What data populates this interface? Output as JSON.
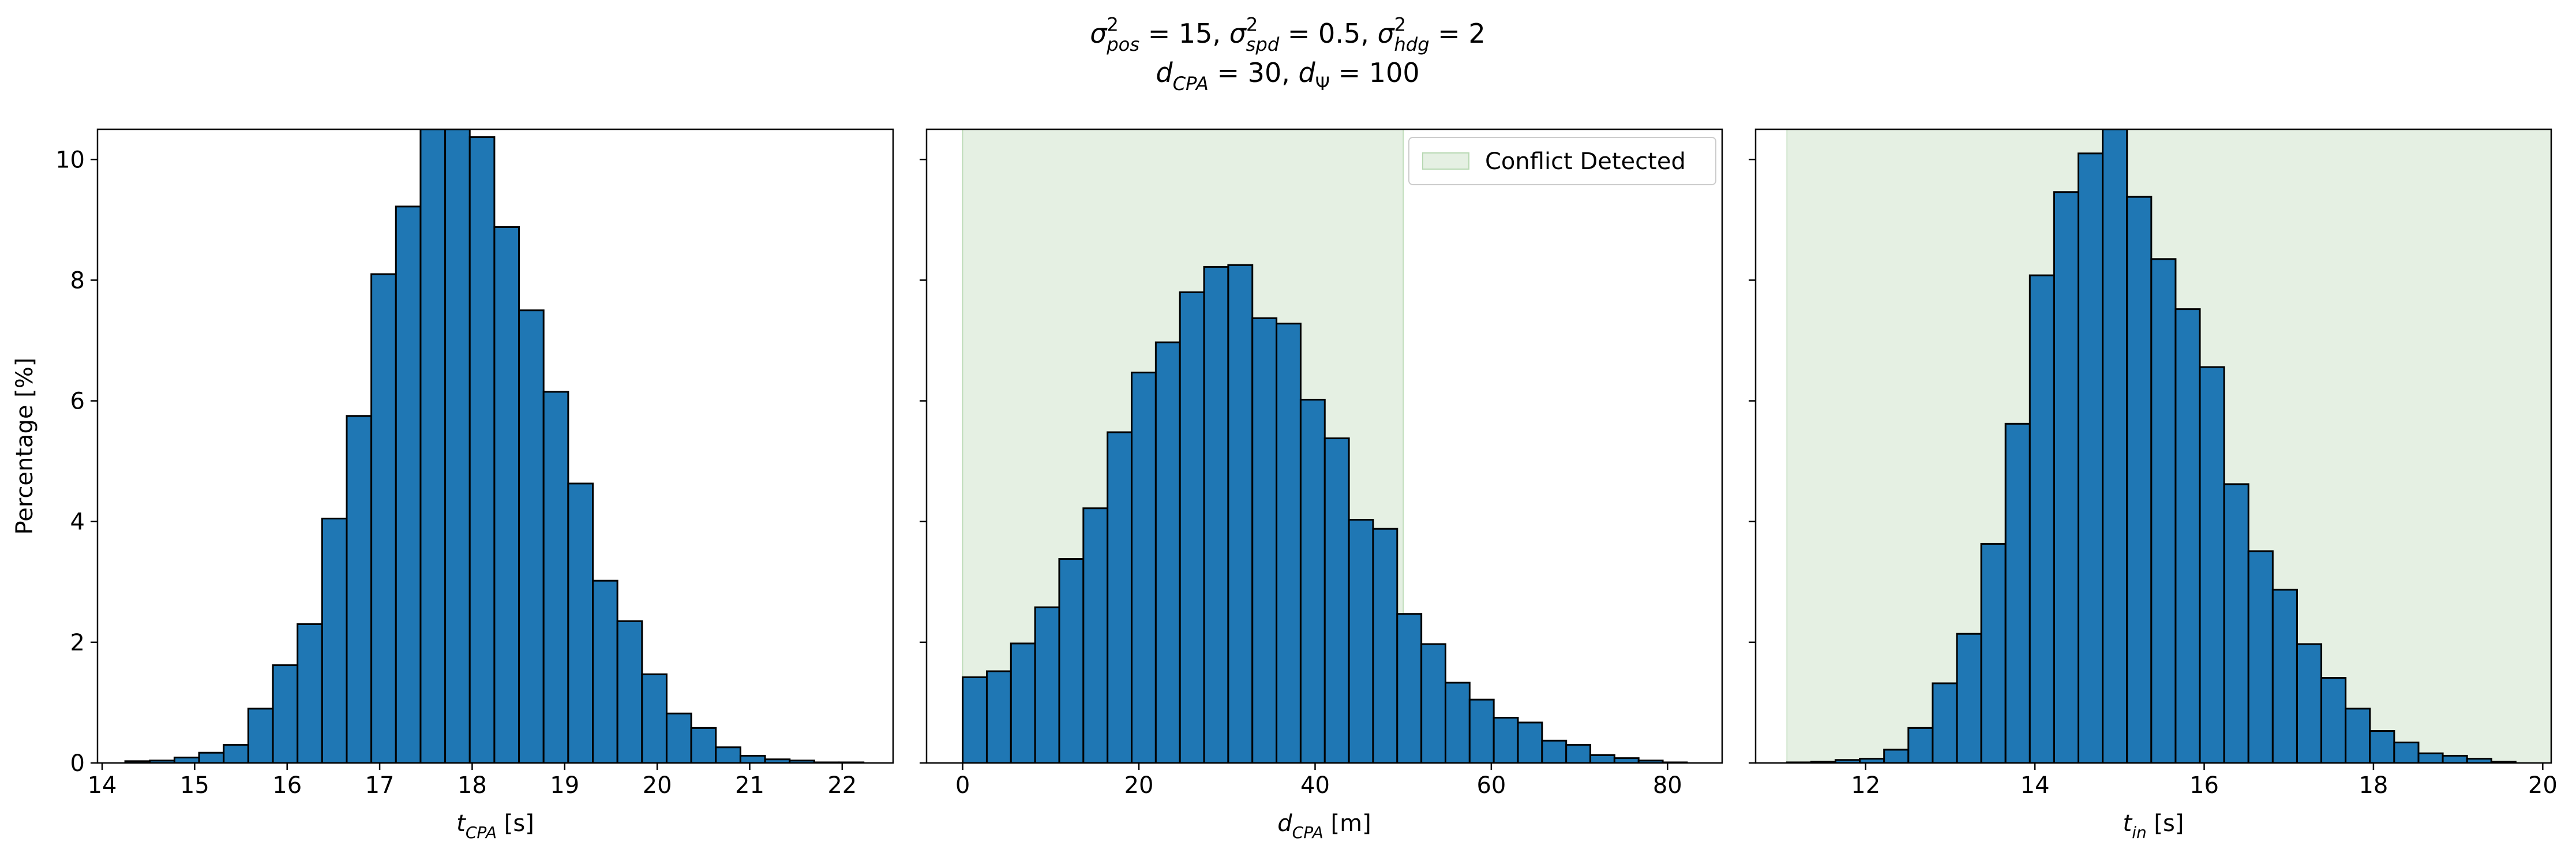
{
  "figure": {
    "title_line1": {
      "segments": [
        {
          "text": "σ",
          "style": "italic"
        },
        {
          "text": "2",
          "style": "sup"
        },
        {
          "text": "pos",
          "style": "sub-italic"
        },
        {
          "text": " = 15, ",
          "style": "normal"
        },
        {
          "text": "σ",
          "style": "italic"
        },
        {
          "text": "2",
          "style": "sup"
        },
        {
          "text": "spd",
          "style": "sub-italic"
        },
        {
          "text": " = 0.5, ",
          "style": "normal"
        },
        {
          "text": "σ",
          "style": "italic"
        },
        {
          "text": "2",
          "style": "sup"
        },
        {
          "text": "hdg",
          "style": "sub-italic"
        },
        {
          "text": " = 2",
          "style": "normal"
        }
      ]
    },
    "title_line2": {
      "segments": [
        {
          "text": "d",
          "style": "italic"
        },
        {
          "text": "CPA",
          "style": "sub-italic"
        },
        {
          "text": " = 30, ",
          "style": "normal"
        },
        {
          "text": "d",
          "style": "italic"
        },
        {
          "text": "Ψ",
          "style": "sub"
        },
        {
          "text": " = 100",
          "style": "normal"
        }
      ]
    },
    "ylabel": "Percentage [%]",
    "legend_label": "Conflict Detected",
    "bar_color": "#1f77b4",
    "bar_edge_color": "#000000",
    "shade_color": "#e5f0e3"
  },
  "chart_data": [
    {
      "type": "bar",
      "xlabel": {
        "segments": [
          {
            "text": "t",
            "style": "italic"
          },
          {
            "text": "CPA",
            "style": "sub-italic"
          },
          {
            "text": " [s]",
            "style": "normal"
          }
        ]
      },
      "xlim": [
        13.95,
        22.55
      ],
      "ylim": [
        0,
        10.5
      ],
      "xticks": [
        14,
        15,
        16,
        17,
        18,
        19,
        20,
        21,
        22
      ],
      "yticks": [
        0,
        2,
        4,
        6,
        8,
        10
      ],
      "bin_start": 14.25,
      "bin_width": 0.266,
      "values": [
        0.03,
        0.04,
        0.09,
        0.17,
        0.3,
        0.9,
        1.62,
        2.3,
        4.05,
        5.75,
        8.1,
        9.22,
        10.5,
        10.5,
        10.37,
        8.88,
        7.5,
        6.15,
        4.63,
        3.02,
        2.35,
        1.47,
        0.82,
        0.58,
        0.26,
        0.12,
        0.06,
        0.04,
        0.01,
        0.01
      ],
      "shaded": null,
      "legend": false
    },
    {
      "type": "bar",
      "xlabel": {
        "segments": [
          {
            "text": "d",
            "style": "italic"
          },
          {
            "text": "CPA",
            "style": "sub-italic"
          },
          {
            "text": " [m]",
            "style": "normal"
          }
        ]
      },
      "xlim": [
        -4.1,
        86.2
      ],
      "ylim": [
        0,
        10.5
      ],
      "xticks": [
        0,
        20,
        40,
        60,
        80
      ],
      "yticks": [
        0,
        2,
        4,
        6,
        8,
        10
      ],
      "bin_start": 0,
      "bin_width": 2.74,
      "values": [
        1.42,
        1.52,
        1.98,
        2.58,
        3.38,
        4.22,
        5.48,
        6.47,
        6.97,
        7.8,
        8.22,
        8.25,
        7.37,
        7.28,
        6.02,
        5.38,
        4.03,
        3.88,
        2.47,
        1.97,
        1.33,
        1.05,
        0.75,
        0.67,
        0.37,
        0.3,
        0.13,
        0.08,
        0.04,
        0.01
      ],
      "shaded": [
        0,
        50
      ],
      "legend": true
    },
    {
      "type": "bar",
      "xlabel": {
        "segments": [
          {
            "text": "t",
            "style": "italic"
          },
          {
            "text": "in",
            "style": "sub-italic"
          },
          {
            "text": " [s]",
            "style": "normal"
          }
        ]
      },
      "xlim": [
        10.7,
        20.1
      ],
      "ylim": [
        0,
        10.5
      ],
      "xticks": [
        12,
        14,
        16,
        18,
        20
      ],
      "yticks": [
        0,
        2,
        4,
        6,
        8,
        10
      ],
      "bin_start": 11.07,
      "bin_width": 0.287,
      "values": [
        0.01,
        0.02,
        0.05,
        0.07,
        0.22,
        0.58,
        1.32,
        2.14,
        3.63,
        5.62,
        8.08,
        9.46,
        10.1,
        10.5,
        9.38,
        8.35,
        7.52,
        6.56,
        4.62,
        3.51,
        2.87,
        1.97,
        1.41,
        0.9,
        0.53,
        0.34,
        0.16,
        0.12,
        0.07,
        0.02
      ],
      "shaded": [
        11.07,
        20.1
      ],
      "legend": false
    }
  ]
}
